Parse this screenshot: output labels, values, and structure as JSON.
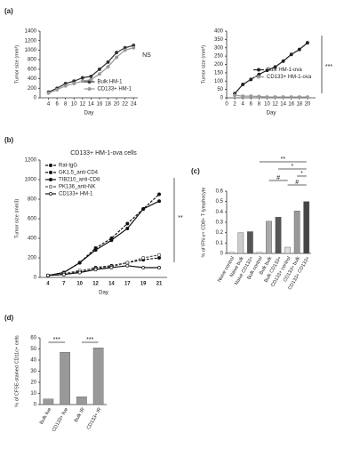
{
  "chart_data": [
    {
      "type": "line",
      "label": "(a)",
      "ylabel": "Tumor size (mm³)",
      "xlabel": "Day",
      "x": [
        4,
        6,
        8,
        10,
        12,
        14,
        16,
        18,
        20,
        22,
        24
      ],
      "xlim": [
        2,
        25
      ],
      "xticks": [
        4,
        6,
        8,
        10,
        12,
        14,
        16,
        18,
        20,
        22,
        24
      ],
      "ylim": [
        0,
        1400
      ],
      "yticks": [
        0,
        200,
        400,
        600,
        800,
        1000,
        1200,
        1400
      ],
      "legend": "lower right",
      "annotations": [
        "NS"
      ],
      "series": [
        {
          "name": "Bulk HM-1",
          "color": "#333333",
          "marker": "filled",
          "dash": false,
          "values": [
            120,
            200,
            300,
            350,
            420,
            450,
            600,
            750,
            950,
            1050,
            1100
          ]
        },
        {
          "name": "CD133+ HM-1",
          "color": "#999999",
          "marker": "filled",
          "dash": false,
          "values": [
            100,
            170,
            250,
            300,
            350,
            380,
            500,
            650,
            850,
            1000,
            1050
          ]
        }
      ]
    },
    {
      "type": "line",
      "ylabel": "Tumor size (mm³)",
      "xlabel": "Day",
      "x": [
        2,
        4,
        6,
        8,
        10,
        12,
        14,
        16,
        18,
        20
      ],
      "xlim": [
        0,
        22
      ],
      "xticks": [
        0,
        2,
        4,
        6,
        8,
        10,
        12,
        14,
        16,
        18,
        20
      ],
      "ylim": [
        0,
        400
      ],
      "yticks": [
        0,
        50,
        100,
        150,
        200,
        250,
        300,
        350,
        400
      ],
      "legend": "center right",
      "annotations": [
        "***"
      ],
      "series": [
        {
          "name": "Bulk HM-1-ova",
          "color": "#222222",
          "marker": "filled",
          "dash": false,
          "values": [
            25,
            80,
            110,
            140,
            165,
            185,
            220,
            260,
            290,
            330
          ]
        },
        {
          "name": "CD133+ HM-1-ova",
          "color": "#999999",
          "marker": "filled",
          "dash": false,
          "values": [
            15,
            10,
            10,
            8,
            5,
            5,
            5,
            5,
            5,
            5
          ]
        }
      ]
    },
    {
      "type": "line",
      "label": "(b)",
      "title": "CD133+ HM-1-ova  cells",
      "ylabel": "Tumor size (mm3)",
      "xlabel": "Day",
      "categories": [
        "4",
        "7",
        "10",
        "12",
        "14",
        "17",
        "19",
        "21"
      ],
      "ylim": [
        0,
        1200
      ],
      "yticks": [
        0,
        200,
        400,
        600,
        800,
        1000,
        1200
      ],
      "legend": "upper left",
      "annotations": [
        "**"
      ],
      "series": [
        {
          "name": "Rat-IgG",
          "color": "#111111",
          "marker": "filled",
          "dash": true,
          "values": [
            20,
            30,
            60,
            100,
            120,
            150,
            180,
            200
          ]
        },
        {
          "name": "GK1.5_anti-CD4",
          "color": "#111111",
          "marker": "filled",
          "dash": true,
          "values": [
            20,
            50,
            150,
            300,
            400,
            550,
            700,
            850
          ]
        },
        {
          "name": "TIB210_anti-CD8",
          "color": "#111111",
          "marker": "filled",
          "dash": false,
          "values": [
            20,
            50,
            150,
            280,
            380,
            500,
            700,
            780
          ]
        },
        {
          "name": "PK136_anti-NK",
          "color": "#555555",
          "marker": "open",
          "dash": true,
          "values": [
            20,
            40,
            70,
            90,
            110,
            150,
            200,
            230
          ]
        },
        {
          "name": "CD133+ HM-1",
          "color": "#111111",
          "marker": "open",
          "dash": false,
          "values": [
            20,
            30,
            50,
            80,
            100,
            120,
            100,
            100
          ]
        }
      ]
    },
    {
      "type": "bar",
      "label": "(c)",
      "ylabel": "% of IFN-γ+ CD8+ T lymphocyte",
      "categories": [
        "Naive control",
        "Naive bulk",
        "Naive CD133+",
        "Bulk control",
        "Bulk bulk",
        "Bulk CD133+",
        "CD133+ control",
        "CD133+ bulk",
        "CD133+ CD133+"
      ],
      "values": [
        0.01,
        0.2,
        0.21,
        0.01,
        0.31,
        0.35,
        0.06,
        0.41,
        0.5
      ],
      "colors": [
        "#eeeeee",
        "#cccccc",
        "#555555",
        "#eeeeee",
        "#aaaaaa",
        "#555555",
        "#dddddd",
        "#999999",
        "#444444"
      ],
      "ylim": [
        0,
        0.6
      ],
      "yticks": [
        0,
        0.1,
        0.2,
        0.3,
        0.4,
        0.5,
        0.6
      ],
      "annotations": [
        "**",
        "*",
        "#",
        "*",
        "#"
      ]
    },
    {
      "type": "bar",
      "label": "(d)",
      "ylabel": "% of CFSE-stained CD11c+ cells",
      "categories": [
        "Bulk live",
        "CD133+ live",
        "Bulk IR",
        "CD133+ IR"
      ],
      "values": [
        5,
        47,
        7,
        51
      ],
      "colors": [
        "#999999",
        "#999999",
        "#999999",
        "#999999"
      ],
      "ylim": [
        0,
        60
      ],
      "yticks": [
        0,
        10,
        20,
        30,
        40,
        50,
        60
      ],
      "annotations": [
        "***",
        "***"
      ]
    }
  ]
}
